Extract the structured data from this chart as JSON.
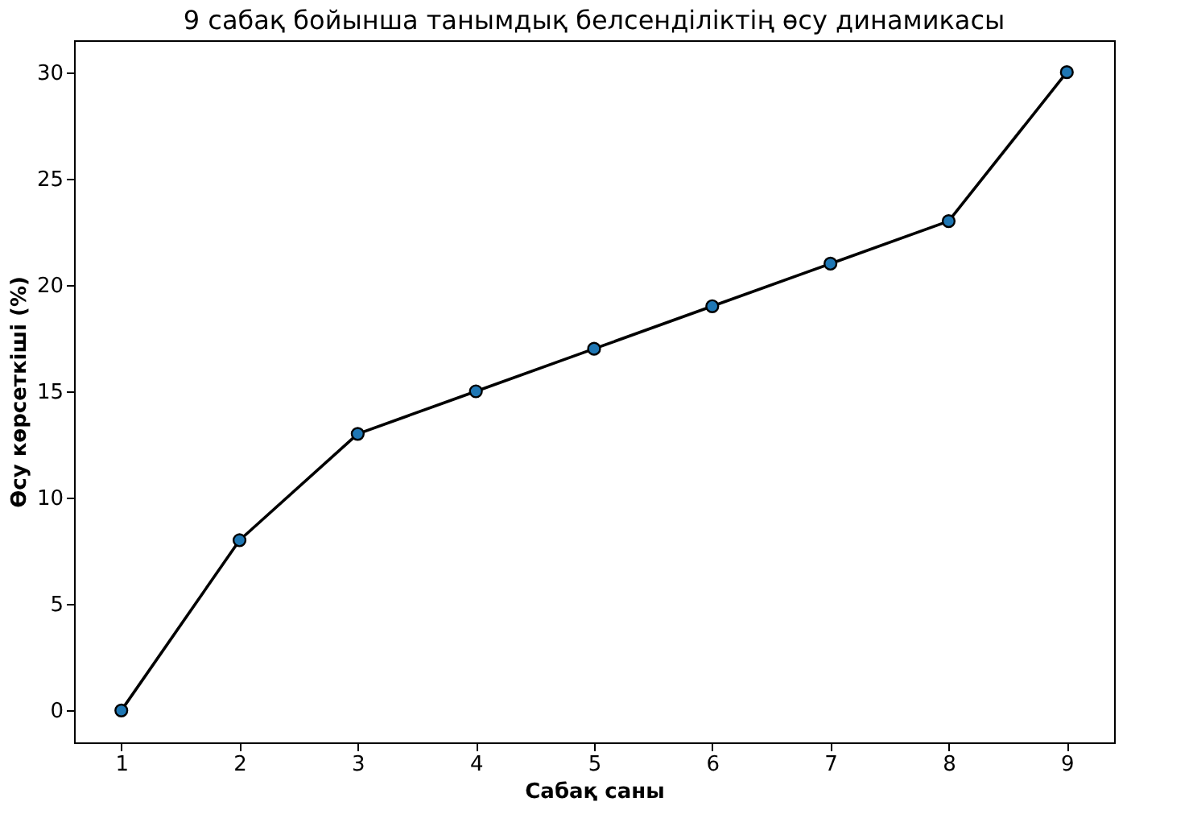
{
  "chart_data": {
    "type": "line",
    "title": "9 сабақ бойынша танымдық белсенділіктің өсу динамикасы",
    "xlabel": "Сабақ саны",
    "ylabel": "Өсу көрсеткіші (%)",
    "x": [
      1,
      2,
      3,
      4,
      5,
      6,
      7,
      8,
      9
    ],
    "series": [
      {
        "color": "#1f77b4",
        "values": [
          0,
          8,
          13,
          15,
          17,
          19,
          21,
          23,
          30
        ]
      }
    ],
    "xlim": [
      0.6,
      9.4
    ],
    "xticks": [
      1,
      2,
      3,
      4,
      5,
      6,
      7,
      8,
      9
    ],
    "ylim": [
      -1.5,
      31.5
    ],
    "yticks": [
      0,
      5,
      10,
      15,
      20,
      25,
      30
    ],
    "marker": "circle",
    "line_style": "solid",
    "grid": false,
    "legend": false
  }
}
